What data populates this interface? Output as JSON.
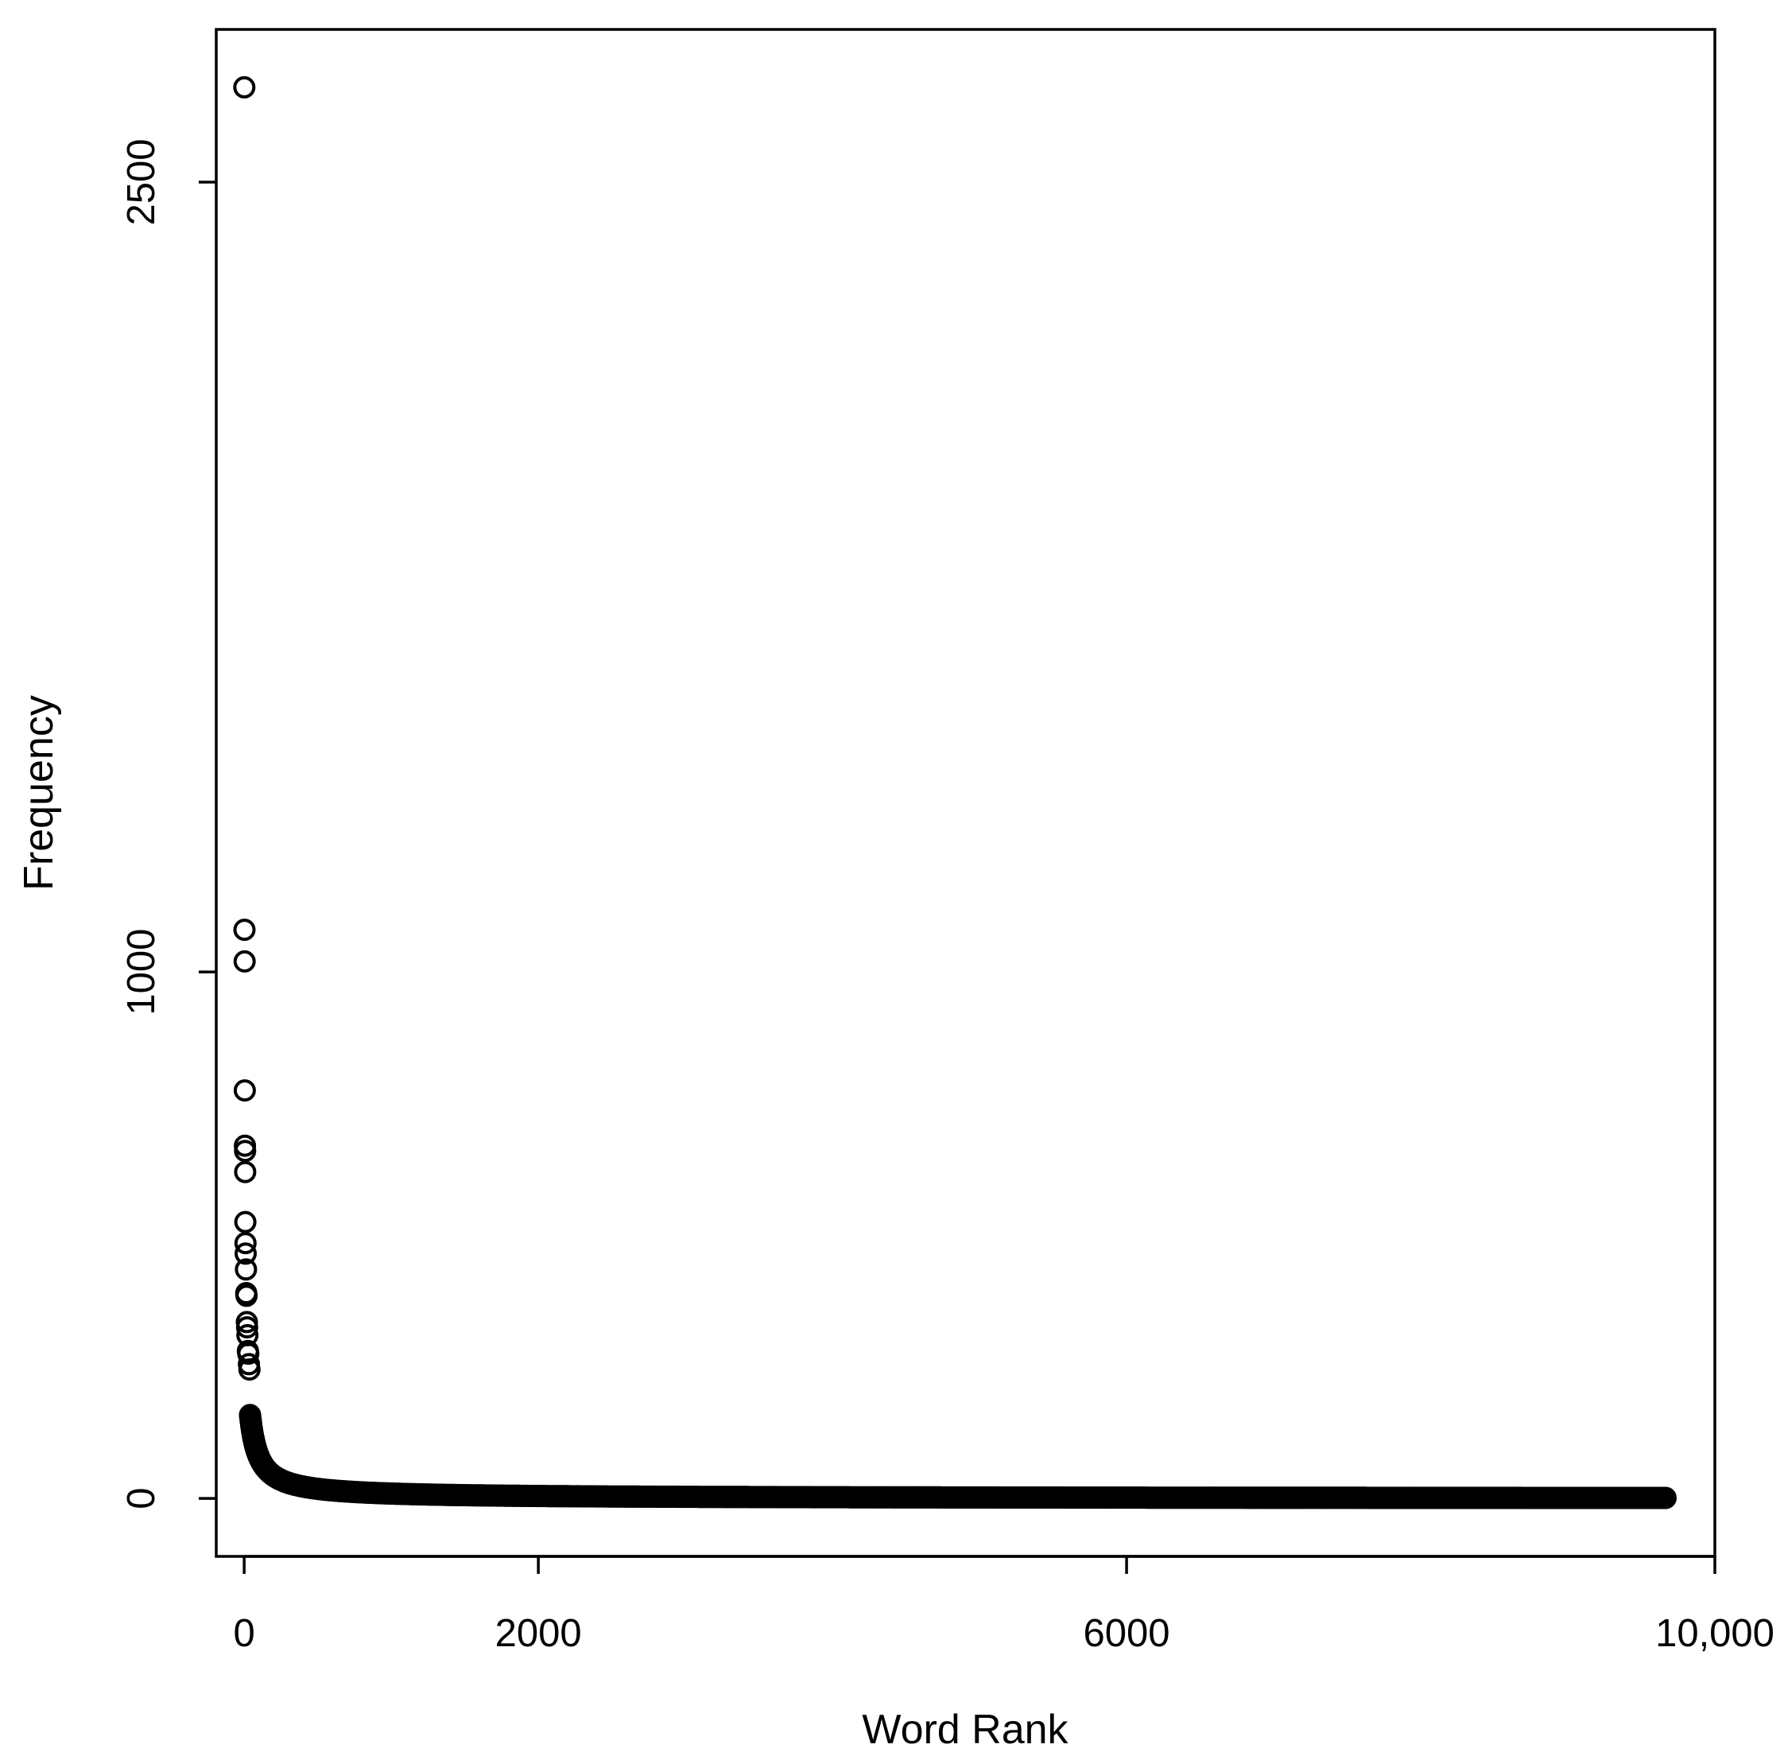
{
  "chart_data": {
    "type": "scatter",
    "title": "",
    "xlabel": "Word Rank",
    "ylabel": "Frequency",
    "xlim": [
      -190,
      10000
    ],
    "ylim": [
      -110,
      2790
    ],
    "x_ticks": [
      0,
      2000,
      6000,
      10000
    ],
    "x_tick_labels": [
      "0",
      "2000",
      "6000",
      "10,000"
    ],
    "y_ticks": [
      0,
      1000,
      2500
    ],
    "y_tick_labels": [
      "0",
      "1000",
      "2500"
    ],
    "grid": false,
    "legend": "none",
    "marker": "open-circle",
    "marker_color": "#000000",
    "notable_points": [
      {
        "x": 1,
        "y": 2680
      },
      {
        "x": 2,
        "y": 1080
      },
      {
        "x": 3,
        "y": 1020
      },
      {
        "x": 4,
        "y": 775
      },
      {
        "x": 5,
        "y": 670
      },
      {
        "x": 6,
        "y": 660
      },
      {
        "x": 7,
        "y": 620
      },
      {
        "x": 8,
        "y": 525
      },
      {
        "x": 9,
        "y": 485
      },
      {
        "x": 10,
        "y": 465
      },
      {
        "x": 12,
        "y": 435
      },
      {
        "x": 14,
        "y": 390
      },
      {
        "x": 16,
        "y": 385
      },
      {
        "x": 18,
        "y": 335
      },
      {
        "x": 20,
        "y": 325
      },
      {
        "x": 22,
        "y": 310
      },
      {
        "x": 25,
        "y": 280
      },
      {
        "x": 28,
        "y": 275
      },
      {
        "x": 32,
        "y": 255
      },
      {
        "x": 36,
        "y": 245
      }
    ],
    "tail_model": {
      "x_start": 40,
      "x_end": 9670,
      "point_count": 9670,
      "form": "y = a / (x + b)",
      "a": 9500,
      "b": 20,
      "min_y": 1
    }
  }
}
